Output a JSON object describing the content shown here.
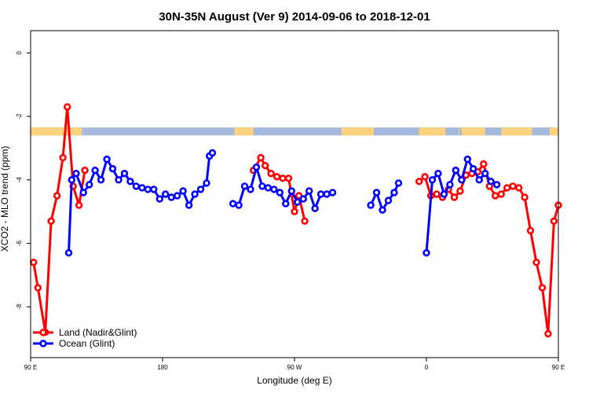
{
  "chart_data": {
    "type": "line",
    "title": "30N-35N August (Ver 9)   2014-09-06 to 2018-12-01",
    "xlabel": "Longitude (deg E)",
    "ylabel": "XCO2 - MLO trend (ppm)",
    "xlim": [
      90,
      450
    ],
    "ylim": [
      -9.6,
      0.7
    ],
    "x_ticks": [
      {
        "value": 90,
        "label": "90 E"
      },
      {
        "value": 180,
        "label": "180"
      },
      {
        "value": 270,
        "label": "90 W"
      },
      {
        "value": 360,
        "label": "0"
      },
      {
        "value": 450,
        "label": "90 E"
      },
      {
        "value": 540,
        "label": "180"
      }
    ],
    "y_ticks": [
      {
        "value": 0,
        "label": "0"
      },
      {
        "value": -2,
        "label": "-2"
      },
      {
        "value": -4,
        "label": "-4"
      },
      {
        "value": -6,
        "label": "-6"
      },
      {
        "value": -8,
        "label": "-8"
      }
    ],
    "legend_position": "bottom-left",
    "band": {
      "y_top": -2.35,
      "y_bottom": -2.6,
      "colors": {
        "land": "#ffd27f",
        "ocean": "#a4b9dc"
      },
      "land_ranges": [
        [
          90,
          125
        ],
        [
          229,
          242
        ],
        [
          302,
          324
        ],
        [
          355,
          373
        ],
        [
          382,
          382
        ],
        [
          384,
          400
        ],
        [
          411,
          432
        ],
        [
          444,
          450
        ]
      ]
    },
    "series": [
      {
        "name": "Land (Nadir&Glint)",
        "color": "#ff0000",
        "segments": [
          [
            [
              92,
              -6.6
            ],
            [
              95,
              -7.4
            ],
            [
              100,
              -8.8
            ],
            [
              104,
              -5.3
            ],
            [
              108,
              -4.5
            ],
            [
              112,
              -3.3
            ],
            [
              115,
              -1.7
            ],
            [
              119,
              -4.2
            ],
            [
              123,
              -4.8
            ],
            [
              127,
              -3.7
            ]
          ],
          [
            [
              242,
              -3.7
            ],
            [
              247,
              -3.3
            ],
            [
              250,
              -3.55
            ],
            [
              254,
              -3.8
            ],
            [
              258,
              -3.9
            ],
            [
              262,
              -3.95
            ],
            [
              266,
              -3.95
            ],
            [
              270,
              -5.0
            ],
            [
              273,
              -4.5
            ],
            [
              277,
              -5.3
            ]
          ],
          [
            [
              355,
              -4.05
            ],
            [
              359,
              -3.9
            ],
            [
              363,
              -4.5
            ],
            [
              367,
              -4.45
            ],
            [
              371,
              -4.55
            ],
            [
              375,
              -4.3
            ],
            [
              379,
              -4.55
            ],
            [
              383,
              -4.35
            ],
            [
              387,
              -3.85
            ],
            [
              391,
              -3.8
            ],
            [
              395,
              -3.75
            ],
            [
              399,
              -3.5
            ],
            [
              403,
              -4.2
            ],
            [
              407,
              -4.5
            ],
            [
              411,
              -4.45
            ],
            [
              415,
              -4.25
            ],
            [
              419,
              -4.2
            ],
            [
              423,
              -4.25
            ],
            [
              427,
              -4.55
            ],
            [
              431,
              -5.6
            ],
            [
              435,
              -6.6
            ],
            [
              439,
              -7.4
            ],
            [
              443,
              -8.85
            ],
            [
              447,
              -5.3
            ],
            [
              450,
              -4.8
            ]
          ]
        ]
      },
      {
        "name": "Ocean (Glint)",
        "color": "#0000ff",
        "segments": [
          [
            [
              116,
              -6.3
            ],
            [
              118,
              -4.0
            ],
            [
              121,
              -3.8
            ],
            [
              126,
              -4.4
            ],
            [
              130,
              -4.15
            ],
            [
              134,
              -3.7
            ],
            [
              138,
              -4.0
            ],
            [
              142,
              -3.35
            ],
            [
              146,
              -3.65
            ],
            [
              150,
              -4.0
            ],
            [
              154,
              -3.8
            ],
            [
              158,
              -4.05
            ],
            [
              162,
              -4.2
            ],
            [
              166,
              -4.25
            ],
            [
              170,
              -4.3
            ],
            [
              174,
              -4.3
            ],
            [
              178,
              -4.6
            ],
            [
              182,
              -4.45
            ],
            [
              186,
              -4.55
            ],
            [
              190,
              -4.5
            ],
            [
              194,
              -4.35
            ],
            [
              198,
              -4.8
            ],
            [
              202,
              -4.45
            ],
            [
              206,
              -4.3
            ],
            [
              210,
              -4.1
            ],
            [
              212,
              -3.25
            ],
            [
              214,
              -3.15
            ]
          ],
          [
            [
              228,
              -4.75
            ],
            [
              232,
              -4.8
            ],
            [
              236,
              -4.2
            ],
            [
              240,
              -4.3
            ],
            [
              244,
              -3.6
            ],
            [
              248,
              -4.2
            ],
            [
              252,
              -4.25
            ],
            [
              256,
              -4.3
            ],
            [
              260,
              -4.4
            ],
            [
              264,
              -4.75
            ],
            [
              268,
              -4.35
            ],
            [
              272,
              -4.7
            ],
            [
              276,
              -4.6
            ],
            [
              280,
              -4.35
            ],
            [
              284,
              -4.9
            ],
            [
              288,
              -4.45
            ],
            [
              292,
              -4.45
            ],
            [
              296,
              -4.4
            ]
          ],
          [
            [
              322,
              -4.8
            ],
            [
              326,
              -4.4
            ],
            [
              330,
              -4.95
            ],
            [
              334,
              -4.65
            ],
            [
              338,
              -4.4
            ],
            [
              341,
              -4.1
            ]
          ],
          [
            [
              360,
              -6.3
            ],
            [
              364,
              -4.0
            ],
            [
              368,
              -3.8
            ],
            [
              372,
              -4.45
            ],
            [
              376,
              -4.15
            ],
            [
              380,
              -3.7
            ],
            [
              384,
              -4.0
            ],
            [
              388,
              -3.35
            ],
            [
              392,
              -3.65
            ],
            [
              396,
              -4.0
            ],
            [
              400,
              -3.8
            ],
            [
              404,
              -4.05
            ],
            [
              408,
              -4.15
            ]
          ]
        ]
      }
    ]
  }
}
